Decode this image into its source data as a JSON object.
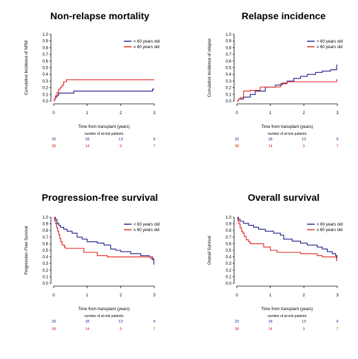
{
  "colors": {
    "young": "#1a1a8c",
    "old": "#e0201a"
  },
  "chart_data": [
    {
      "type": "line",
      "title": "Non-relapse mortality",
      "ylabel": "Cumulative Incidence of NRM",
      "xlabel": "Time from transplant (years)",
      "xlim": [
        0,
        3
      ],
      "ylim": [
        0,
        1
      ],
      "xticks": [
        "0",
        "1",
        "2",
        "3"
      ],
      "yticks": [
        "0.0",
        "0.1",
        "0.2",
        "0.3",
        "0.4",
        "0.5",
        "0.6",
        "0.7",
        "0.8",
        "0.9",
        "1.0"
      ],
      "legend_position": "top-right",
      "series": [
        {
          "name": "< 60 years old",
          "color": "#1a1a8c",
          "steps": [
            [
              0,
              0
            ],
            [
              0.02,
              0.03
            ],
            [
              0.05,
              0.06
            ],
            [
              0.1,
              0.09
            ],
            [
              0.15,
              0.12
            ],
            [
              0.6,
              0.15
            ],
            [
              2.95,
              0.18
            ],
            [
              3.0,
              0.18
            ]
          ]
        },
        {
          "name": "≥ 60 years old",
          "color": "#e0201a",
          "steps": [
            [
              0,
              0
            ],
            [
              0.02,
              0.03
            ],
            [
              0.05,
              0.08
            ],
            [
              0.1,
              0.13
            ],
            [
              0.15,
              0.18
            ],
            [
              0.2,
              0.21
            ],
            [
              0.25,
              0.24
            ],
            [
              0.3,
              0.29
            ],
            [
              0.38,
              0.32
            ],
            [
              3.0,
              0.32
            ]
          ]
        }
      ],
      "risk_table": {
        "title": "number of at-risk patients",
        "rows": [
          {
            "color": "#1a1a8c",
            "values": [
              "33",
              "18",
              "13",
              "9"
            ]
          },
          {
            "color": "#e0201a",
            "values": [
              "38",
              "14",
              "9",
              "7"
            ]
          }
        ]
      }
    },
    {
      "type": "line",
      "title": "Relapse incidence",
      "ylabel": "Cumulative Incidence of relapse",
      "xlabel": "Time from transplant (years)",
      "xlim": [
        0,
        3
      ],
      "ylim": [
        0,
        1
      ],
      "xticks": [
        "0",
        "1",
        "2",
        "3"
      ],
      "yticks": [
        "0.0",
        "0.1",
        "0.2",
        "0.3",
        "0.4",
        "0.5",
        "0.6",
        "0.7",
        "0.8",
        "0.9",
        "1.0"
      ],
      "legend_position": "top-right",
      "series": [
        {
          "name": "< 60 years old",
          "color": "#1a1a8c",
          "steps": [
            [
              0,
              0
            ],
            [
              0.05,
              0.03
            ],
            [
              0.2,
              0.06
            ],
            [
              0.4,
              0.1
            ],
            [
              0.55,
              0.15
            ],
            [
              0.85,
              0.21
            ],
            [
              1.15,
              0.24
            ],
            [
              1.35,
              0.27
            ],
            [
              1.5,
              0.3
            ],
            [
              1.7,
              0.34
            ],
            [
              1.9,
              0.37
            ],
            [
              2.1,
              0.4
            ],
            [
              2.35,
              0.43
            ],
            [
              2.55,
              0.45
            ],
            [
              2.8,
              0.47
            ],
            [
              2.98,
              0.54
            ],
            [
              3.0,
              0.54
            ]
          ]
        },
        {
          "name": "≥ 60 years old",
          "color": "#e0201a",
          "steps": [
            [
              0,
              0
            ],
            [
              0.05,
              0.03
            ],
            [
              0.1,
              0.05
            ],
            [
              0.2,
              0.15
            ],
            [
              0.4,
              0.16
            ],
            [
              0.7,
              0.21
            ],
            [
              1.3,
              0.26
            ],
            [
              1.5,
              0.29
            ],
            [
              2.98,
              0.32
            ],
            [
              3.0,
              0.32
            ]
          ]
        }
      ],
      "risk_table": {
        "title": "number of at-risk patients",
        "rows": [
          {
            "color": "#1a1a8c",
            "values": [
              "33",
              "18",
              "13",
              "9"
            ]
          },
          {
            "color": "#e0201a",
            "values": [
              "38",
              "14",
              "9",
              "7"
            ]
          }
        ]
      }
    },
    {
      "type": "line",
      "title": "Progression-free survival",
      "ylabel": "Progression−Free Survival",
      "xlabel": "Time from transplant (years)",
      "xlim": [
        0,
        3
      ],
      "ylim": [
        0,
        1
      ],
      "xticks": [
        "0",
        "1",
        "2",
        "3"
      ],
      "yticks": [
        "0.0",
        "0.1",
        "0.2",
        "0.3",
        "0.4",
        "0.5",
        "0.6",
        "0.7",
        "0.8",
        "0.9",
        "1.0"
      ],
      "legend_position": "top-right",
      "series": [
        {
          "name": "< 60 years old",
          "color": "#1a1a8c",
          "steps": [
            [
              0,
              1.0
            ],
            [
              0.05,
              0.97
            ],
            [
              0.1,
              0.91
            ],
            [
              0.15,
              0.88
            ],
            [
              0.2,
              0.85
            ],
            [
              0.3,
              0.82
            ],
            [
              0.4,
              0.79
            ],
            [
              0.55,
              0.76
            ],
            [
              0.7,
              0.7
            ],
            [
              0.85,
              0.67
            ],
            [
              1.0,
              0.63
            ],
            [
              1.3,
              0.61
            ],
            [
              1.5,
              0.58
            ],
            [
              1.7,
              0.52
            ],
            [
              1.85,
              0.5
            ],
            [
              2.0,
              0.48
            ],
            [
              2.3,
              0.45
            ],
            [
              2.6,
              0.42
            ],
            [
              2.85,
              0.4
            ],
            [
              2.95,
              0.36
            ],
            [
              2.99,
              0.29
            ],
            [
              3.0,
              0.29
            ]
          ]
        },
        {
          "name": "≥ 60 years old",
          "color": "#e0201a",
          "steps": [
            [
              0,
              1.0
            ],
            [
              0.03,
              0.95
            ],
            [
              0.06,
              0.9
            ],
            [
              0.09,
              0.84
            ],
            [
              0.12,
              0.79
            ],
            [
              0.15,
              0.74
            ],
            [
              0.18,
              0.68
            ],
            [
              0.21,
              0.63
            ],
            [
              0.25,
              0.58
            ],
            [
              0.32,
              0.55
            ],
            [
              0.35,
              0.53
            ],
            [
              0.9,
              0.47
            ],
            [
              1.3,
              0.42
            ],
            [
              1.6,
              0.4
            ],
            [
              2.9,
              0.37
            ],
            [
              3.0,
              0.37
            ]
          ]
        }
      ],
      "risk_table": {
        "title": "number of at-risk patients",
        "rows": [
          {
            "color": "#1a1a8c",
            "values": [
              "33",
              "18",
              "13",
              "9"
            ]
          },
          {
            "color": "#e0201a",
            "values": [
              "38",
              "14",
              "9",
              "7"
            ]
          }
        ]
      }
    },
    {
      "type": "line",
      "title": "Overall survival",
      "ylabel": "Overall Survival",
      "xlabel": "Time from transplant (years)",
      "xlim": [
        0,
        3
      ],
      "ylim": [
        0,
        1
      ],
      "xticks": [
        "0",
        "1",
        "2",
        "3"
      ],
      "yticks": [
        "0.0",
        "0.1",
        "0.2",
        "0.3",
        "0.4",
        "0.5",
        "0.6",
        "0.7",
        "0.8",
        "0.9",
        "1.0"
      ],
      "legend_position": "top-right",
      "series": [
        {
          "name": "< 60 years old",
          "color": "#1a1a8c",
          "steps": [
            [
              0,
              1.0
            ],
            [
              0.05,
              0.97
            ],
            [
              0.1,
              0.94
            ],
            [
              0.2,
              0.91
            ],
            [
              0.35,
              0.88
            ],
            [
              0.5,
              0.85
            ],
            [
              0.65,
              0.82
            ],
            [
              0.85,
              0.79
            ],
            [
              1.1,
              0.76
            ],
            [
              1.3,
              0.73
            ],
            [
              1.4,
              0.67
            ],
            [
              1.65,
              0.64
            ],
            [
              1.9,
              0.61
            ],
            [
              2.1,
              0.58
            ],
            [
              2.4,
              0.55
            ],
            [
              2.55,
              0.52
            ],
            [
              2.7,
              0.48
            ],
            [
              2.85,
              0.45
            ],
            [
              2.95,
              0.42
            ],
            [
              2.99,
              0.39
            ],
            [
              3.0,
              0.39
            ]
          ]
        },
        {
          "name": "≥ 60 years old",
          "color": "#e0201a",
          "steps": [
            [
              0,
              1.0
            ],
            [
              0.03,
              0.95
            ],
            [
              0.06,
              0.9
            ],
            [
              0.1,
              0.84
            ],
            [
              0.14,
              0.79
            ],
            [
              0.18,
              0.76
            ],
            [
              0.22,
              0.71
            ],
            [
              0.28,
              0.66
            ],
            [
              0.35,
              0.63
            ],
            [
              0.4,
              0.6
            ],
            [
              0.8,
              0.55
            ],
            [
              1.0,
              0.5
            ],
            [
              1.2,
              0.47
            ],
            [
              1.9,
              0.45
            ],
            [
              2.4,
              0.42
            ],
            [
              2.55,
              0.4
            ],
            [
              2.97,
              0.35
            ],
            [
              3.0,
              0.35
            ]
          ]
        }
      ],
      "risk_table": {
        "title": "number of at-risk patients",
        "rows": [
          {
            "color": "#1a1a8c",
            "values": [
              "33",
              "18",
              "13",
              "9"
            ]
          },
          {
            "color": "#e0201a",
            "values": [
              "38",
              "14",
              "9",
              "7"
            ]
          }
        ]
      }
    }
  ]
}
